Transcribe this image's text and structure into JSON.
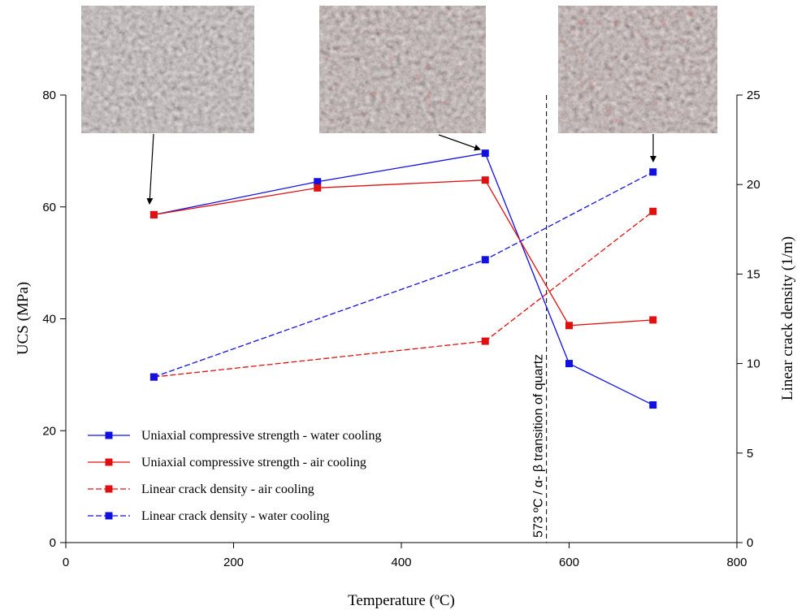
{
  "chart_data": {
    "type": "line",
    "xlabel": "Temperature (ºC)",
    "ylabel": "UCS (MPa)",
    "y2label": "Linear crack density (1/m)",
    "xlim": [
      0,
      800
    ],
    "ylim": [
      0,
      80
    ],
    "y2lim": [
      0,
      25
    ],
    "xticks": [
      0,
      200,
      400,
      600,
      800
    ],
    "yticks": [
      0,
      20,
      40,
      60,
      80
    ],
    "y2ticks": [
      0,
      5,
      10,
      15,
      20,
      25
    ],
    "grid": false,
    "legend_position": "bottom-left",
    "series": [
      {
        "name": "Uniaxial compressive strength - water cooling",
        "axis": "left",
        "style": "solid",
        "color": "#1010e0",
        "x": [
          105,
          300,
          500,
          600,
          700
        ],
        "y": [
          58.6,
          64.5,
          69.6,
          32.0,
          24.6
        ]
      },
      {
        "name": "Uniaxial compressive strength - air cooling",
        "axis": "left",
        "style": "solid",
        "color": "#e01010",
        "x": [
          105,
          300,
          500,
          600,
          700
        ],
        "y": [
          58.6,
          63.4,
          64.8,
          38.8,
          39.8
        ]
      },
      {
        "name": "Linear crack density - air cooling",
        "axis": "right",
        "style": "dashed",
        "color": "#e01010",
        "x": [
          105,
          500,
          700
        ],
        "y": [
          9.25,
          11.25,
          18.5
        ]
      },
      {
        "name": "Linear crack density - water cooling",
        "axis": "right",
        "style": "dashed",
        "color": "#1010e0",
        "x": [
          105,
          500,
          700
        ],
        "y": [
          9.25,
          15.8,
          20.7
        ]
      }
    ],
    "annotations": [
      {
        "type": "vline",
        "x": 573,
        "label": "573 ºC / α- β transition of quartz"
      }
    ],
    "images": [
      {
        "name": "rock-sample-105C",
        "points_to": {
          "x": 105,
          "y": 58.6
        },
        "tint": "grey-pink"
      },
      {
        "name": "rock-sample-500C",
        "points_to": {
          "x": 500,
          "y": 69.6
        },
        "tint": "pink-red"
      },
      {
        "name": "rock-sample-700C",
        "points_to": {
          "x": 700,
          "y": 66.2
        },
        "tint": "red"
      }
    ]
  }
}
